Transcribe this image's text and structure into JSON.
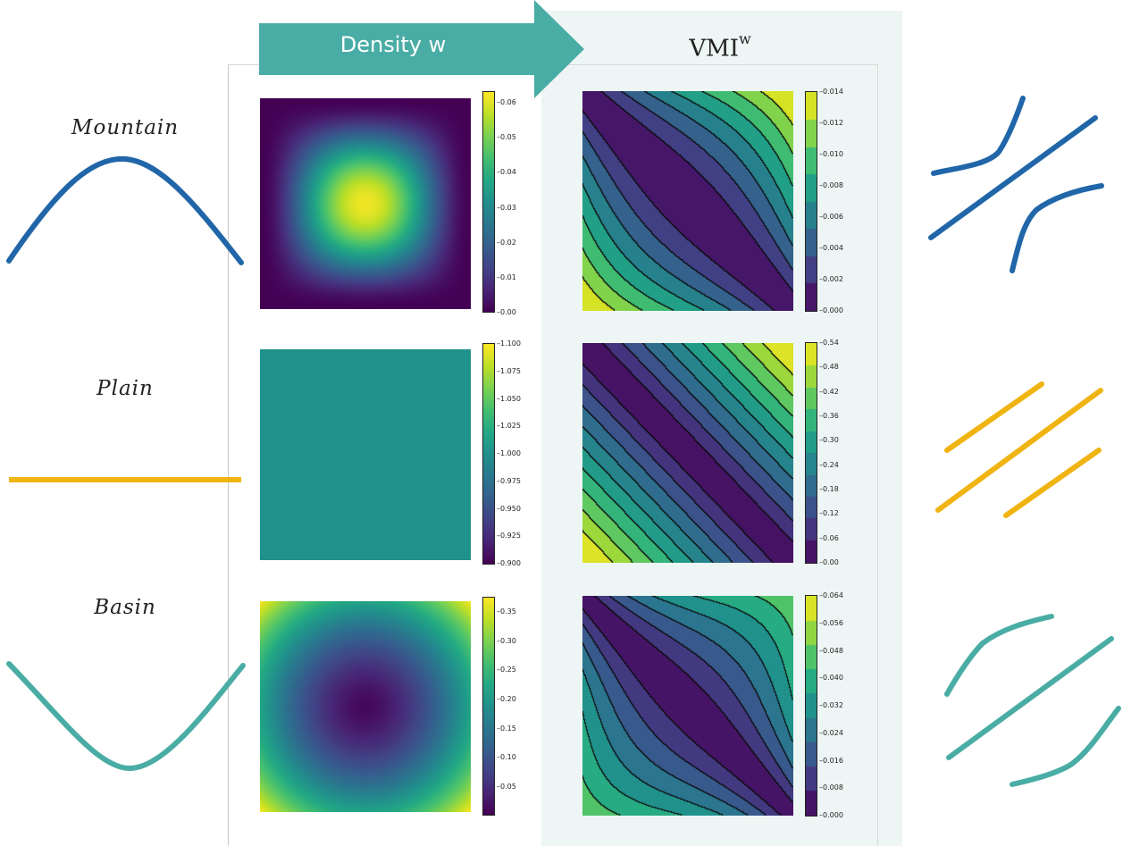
{
  "header": {
    "arrow_label": "Density w",
    "vmi_label": "VMI",
    "vmi_superscript": "w"
  },
  "terrains": [
    {
      "label": "Mountain",
      "color": "#2066a8"
    },
    {
      "label": "Plain",
      "color": "#f0b412"
    },
    {
      "label": "Basin",
      "color": "#4aada5"
    }
  ],
  "colors": {
    "arrow": "#4aada5",
    "vmi_panel_bg": "#eef6f5",
    "mountain": "#2066a8",
    "plain": "#f0b412",
    "basin": "#4aada5"
  },
  "chart_data": [
    {
      "type": "heatmap",
      "row": "Mountain",
      "panel": "density",
      "colorbar_ticks": [
        "0.06",
        "0.05",
        "0.04",
        "0.03",
        "0.02",
        "0.01",
        "0.00"
      ],
      "vrange": [
        0.0,
        0.063
      ]
    },
    {
      "type": "heatmap",
      "row": "Mountain",
      "panel": "vmi",
      "colorbar_ticks": [
        "0.014",
        "0.012",
        "0.010",
        "0.008",
        "0.006",
        "0.004",
        "0.002",
        "0.000"
      ],
      "levels": 8,
      "vrange": [
        0.0,
        0.014
      ]
    },
    {
      "type": "heatmap",
      "row": "Plain",
      "panel": "density",
      "colorbar_ticks": [
        "1.100",
        "1.075",
        "1.050",
        "1.025",
        "1.000",
        "0.975",
        "0.950",
        "0.925",
        "0.900"
      ],
      "vrange": [
        0.9,
        1.1
      ]
    },
    {
      "type": "heatmap",
      "row": "Plain",
      "panel": "vmi",
      "colorbar_ticks": [
        "0.54",
        "0.48",
        "0.42",
        "0.36",
        "0.30",
        "0.24",
        "0.18",
        "0.12",
        "0.06",
        "0.00"
      ],
      "levels": 10,
      "vrange": [
        0.0,
        0.54
      ]
    },
    {
      "type": "heatmap",
      "row": "Basin",
      "panel": "density",
      "colorbar_ticks": [
        "0.35",
        "0.30",
        "0.25",
        "0.20",
        "0.15",
        "0.10",
        "0.05"
      ],
      "vrange": [
        0.0,
        0.38
      ]
    },
    {
      "type": "heatmap",
      "row": "Basin",
      "panel": "vmi",
      "colorbar_ticks": [
        "0.064",
        "0.056",
        "0.048",
        "0.040",
        "0.032",
        "0.024",
        "0.016",
        "0.008",
        "0.000"
      ],
      "levels": 9,
      "vrange": [
        0.0,
        0.064
      ]
    }
  ]
}
